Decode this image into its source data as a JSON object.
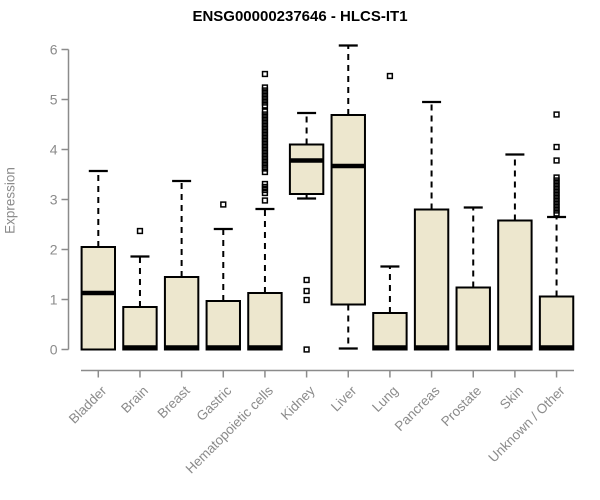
{
  "chart_data": {
    "type": "boxplot",
    "title": "ENSG00000237646 - HLCS-IT1",
    "ylabel": "Expression",
    "xlabel": "",
    "ylim": [
      0,
      6
    ],
    "yticks": [
      0,
      1,
      2,
      3,
      4,
      5,
      6
    ],
    "grid": false,
    "legend": false,
    "categories": [
      "Bladder",
      "Brain",
      "Breast",
      "Gastric",
      "Hematopoietic cells",
      "Kidney",
      "Liver",
      "Lung",
      "Pancreas",
      "Prostate",
      "Skin",
      "Unknown / Other"
    ],
    "boxes": [
      {
        "label": "Bladder",
        "whislo": 0,
        "q1": 0,
        "med": 1.13,
        "q3": 2.05,
        "whishi": 3.57,
        "outliers": []
      },
      {
        "label": "Brain",
        "whislo": 0,
        "q1": 0,
        "med": 0.04,
        "q3": 0.85,
        "whishi": 1.86,
        "outliers": [
          2.37
        ]
      },
      {
        "label": "Breast",
        "whislo": 0,
        "q1": 0,
        "med": 0.04,
        "q3": 1.45,
        "whishi": 3.37,
        "outliers": []
      },
      {
        "label": "Gastric",
        "whislo": 0,
        "q1": 0,
        "med": 0.04,
        "q3": 0.97,
        "whishi": 2.41,
        "outliers": [
          2.9
        ]
      },
      {
        "label": "Hematopoietic cells",
        "whislo": 0,
        "q1": 0,
        "med": 0.04,
        "q3": 1.13,
        "whishi": 2.81,
        "outliers": [
          2.98,
          3.13,
          3.19,
          3.25,
          3.31,
          3.55,
          3.62,
          3.68,
          3.74,
          3.8,
          3.86,
          3.92,
          3.98,
          4.04,
          4.1,
          4.16,
          4.22,
          4.28,
          4.34,
          4.4,
          4.46,
          4.52,
          4.58,
          4.64,
          4.7,
          4.76,
          4.88,
          4.94,
          5.0,
          5.06,
          5.12,
          5.18,
          5.24,
          5.51
        ]
      },
      {
        "label": "Kidney",
        "whislo": 3.02,
        "q1": 3.11,
        "med": 3.78,
        "q3": 4.1,
        "whishi": 4.73,
        "outliers": [
          1.39,
          1.17,
          0.99,
          0.0
        ]
      },
      {
        "label": "Liver",
        "whislo": 0.02,
        "q1": 0.9,
        "med": 3.67,
        "q3": 4.69,
        "whishi": 6.08,
        "outliers": []
      },
      {
        "label": "Lung",
        "whislo": 0,
        "q1": 0,
        "med": 0.04,
        "q3": 0.73,
        "whishi": 1.66,
        "outliers": [
          5.47
        ]
      },
      {
        "label": "Pancreas",
        "whislo": 0,
        "q1": 0,
        "med": 0.04,
        "q3": 2.8,
        "whishi": 4.95,
        "outliers": []
      },
      {
        "label": "Prostate",
        "whislo": 0,
        "q1": 0,
        "med": 0.04,
        "q3": 1.24,
        "whishi": 2.84,
        "outliers": []
      },
      {
        "label": "Skin",
        "whislo": 0,
        "q1": 0,
        "med": 0.04,
        "q3": 2.58,
        "whishi": 3.9,
        "outliers": []
      },
      {
        "label": "Unknown / Other",
        "whislo": 0,
        "q1": 0,
        "med": 0.04,
        "q3": 1.06,
        "whishi": 2.65,
        "outliers": [
          2.72,
          2.78,
          2.84,
          2.9,
          2.96,
          3.02,
          3.08,
          3.14,
          3.2,
          3.26,
          3.32,
          3.38,
          3.44,
          3.78,
          4.05,
          4.7
        ]
      }
    ],
    "colors": {
      "box_fill": "#EDE7CE",
      "box_stroke": "#000000",
      "median": "#000000",
      "whisker": "#000000",
      "axis": "#8b8b8b",
      "tick_label": "#8b8b8b",
      "title": "#000000"
    }
  }
}
